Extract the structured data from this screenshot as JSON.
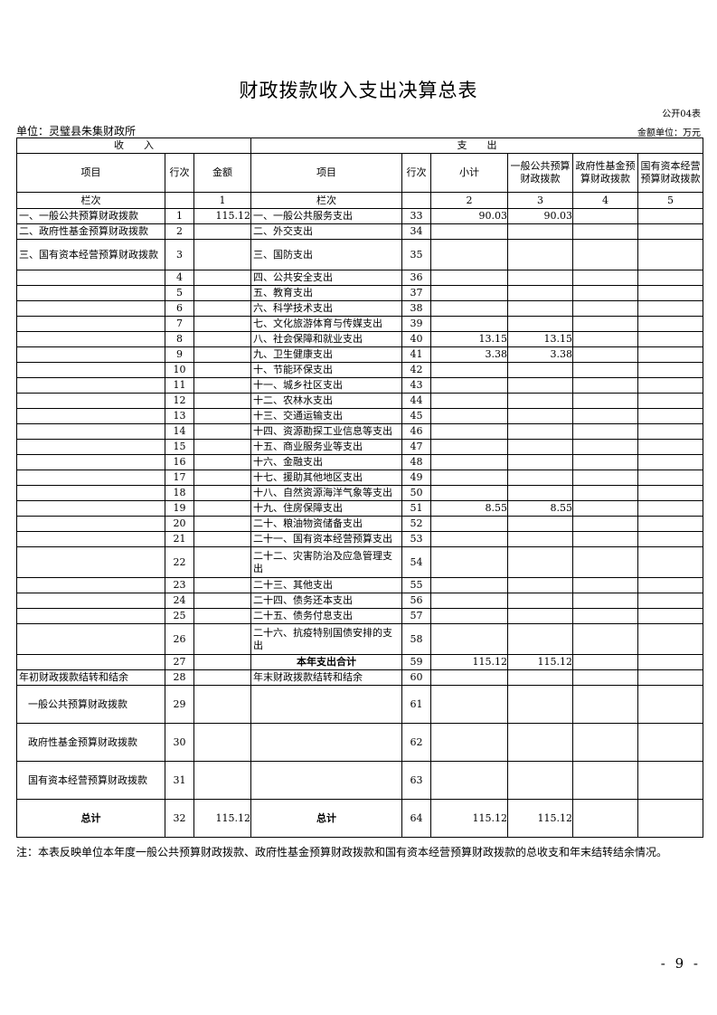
{
  "title": "财政拨款收入支出决算总表",
  "form_no": "公开04表",
  "unit": "单位：灵璧县朱集财政所",
  "money_unit": "金额单位：万元",
  "header": {
    "income": "收　　入",
    "expense": "支　　出",
    "cols": [
      "项目",
      "行次",
      "金额",
      "项目",
      "行次",
      "小计",
      "一般公共预算财政拨款",
      "政府性基金预算财政拨款",
      "国有资本经营预算财政拨款"
    ],
    "lanci": [
      "栏次",
      "",
      "1",
      "栏次",
      "",
      "2",
      "3",
      "4",
      "5"
    ]
  },
  "rows": [
    [
      "一、一般公共预算财政拨款",
      "1",
      "115.12",
      "一、一般公共服务支出",
      "33",
      "90.03",
      "90.03",
      "",
      ""
    ],
    [
      "二、政府性基金预算财政拨款",
      "2",
      "",
      "二、外交支出",
      "34",
      "",
      "",
      "",
      ""
    ],
    [
      "三、国有资本经营预算财政拨款",
      "3",
      "",
      "三、国防支出",
      "35",
      "",
      "",
      "",
      ""
    ],
    [
      "",
      "4",
      "",
      "四、公共安全支出",
      "36",
      "",
      "",
      "",
      ""
    ],
    [
      "",
      "5",
      "",
      "五、教育支出",
      "37",
      "",
      "",
      "",
      ""
    ],
    [
      "",
      "6",
      "",
      "六、科学技术支出",
      "38",
      "",
      "",
      "",
      ""
    ],
    [
      "",
      "7",
      "",
      "七、文化旅游体育与传媒支出",
      "39",
      "",
      "",
      "",
      ""
    ],
    [
      "",
      "8",
      "",
      "八、社会保障和就业支出",
      "40",
      "13.15",
      "13.15",
      "",
      ""
    ],
    [
      "",
      "9",
      "",
      "九、卫生健康支出",
      "41",
      "3.38",
      "3.38",
      "",
      ""
    ],
    [
      "",
      "10",
      "",
      "十、节能环保支出",
      "42",
      "",
      "",
      "",
      ""
    ],
    [
      "",
      "11",
      "",
      "十一、城乡社区支出",
      "43",
      "",
      "",
      "",
      ""
    ],
    [
      "",
      "12",
      "",
      "十二、农林水支出",
      "44",
      "",
      "",
      "",
      ""
    ],
    [
      "",
      "13",
      "",
      "十三、交通运输支出",
      "45",
      "",
      "",
      "",
      ""
    ],
    [
      "",
      "14",
      "",
      "十四、资源勘探工业信息等支出",
      "46",
      "",
      "",
      "",
      ""
    ],
    [
      "",
      "15",
      "",
      "十五、商业服务业等支出",
      "47",
      "",
      "",
      "",
      ""
    ],
    [
      "",
      "16",
      "",
      "十六、金融支出",
      "48",
      "",
      "",
      "",
      ""
    ],
    [
      "",
      "17",
      "",
      "十七、援助其他地区支出",
      "49",
      "",
      "",
      "",
      ""
    ],
    [
      "",
      "18",
      "",
      "十八、自然资源海洋气象等支出",
      "50",
      "",
      "",
      "",
      ""
    ],
    [
      "",
      "19",
      "",
      "十九、住房保障支出",
      "51",
      "8.55",
      "8.55",
      "",
      ""
    ],
    [
      "",
      "20",
      "",
      "二十、粮油物资储备支出",
      "52",
      "",
      "",
      "",
      ""
    ],
    [
      "",
      "21",
      "",
      "二十一、国有资本经营预算支出",
      "53",
      "",
      "",
      "",
      ""
    ],
    [
      "",
      "22",
      "",
      "二十二、灾害防治及应急管理支出",
      "54",
      "",
      "",
      "",
      ""
    ],
    [
      "",
      "23",
      "",
      "二十三、其他支出",
      "55",
      "",
      "",
      "",
      ""
    ],
    [
      "",
      "24",
      "",
      "二十四、债务还本支出",
      "56",
      "",
      "",
      "",
      ""
    ],
    [
      "",
      "25",
      "",
      "二十五、债务付息支出",
      "57",
      "",
      "",
      "",
      ""
    ],
    [
      "",
      "26",
      "",
      "二十六、抗疫特别国债安排的支出",
      "58",
      "",
      "",
      "",
      ""
    ],
    [
      "",
      "27",
      "",
      "本年支出合计",
      "59",
      "115.12",
      "115.12",
      "",
      ""
    ],
    [
      "年初财政拨款结转和结余",
      "28",
      "",
      "年末财政拨款结转和结余",
      "60",
      "",
      "",
      "",
      ""
    ],
    [
      "一般公共预算财政拨款",
      "29",
      "",
      "",
      "61",
      "",
      "",
      "",
      ""
    ],
    [
      "政府性基金预算财政拨款",
      "30",
      "",
      "",
      "62",
      "",
      "",
      "",
      ""
    ],
    [
      "国有资本经营预算财政拨款",
      "31",
      "",
      "",
      "63",
      "",
      "",
      "",
      ""
    ],
    [
      "总计",
      "32",
      "115.12",
      "总计",
      "64",
      "115.12",
      "115.12",
      "",
      ""
    ]
  ],
  "note": "注：本表反映单位本年度一般公共预算财政拨款、政府性基金预算财政拨款和国有资本经营预算财政拨款的总收支和年末结转结余情况。",
  "page_number": "- 9 -"
}
